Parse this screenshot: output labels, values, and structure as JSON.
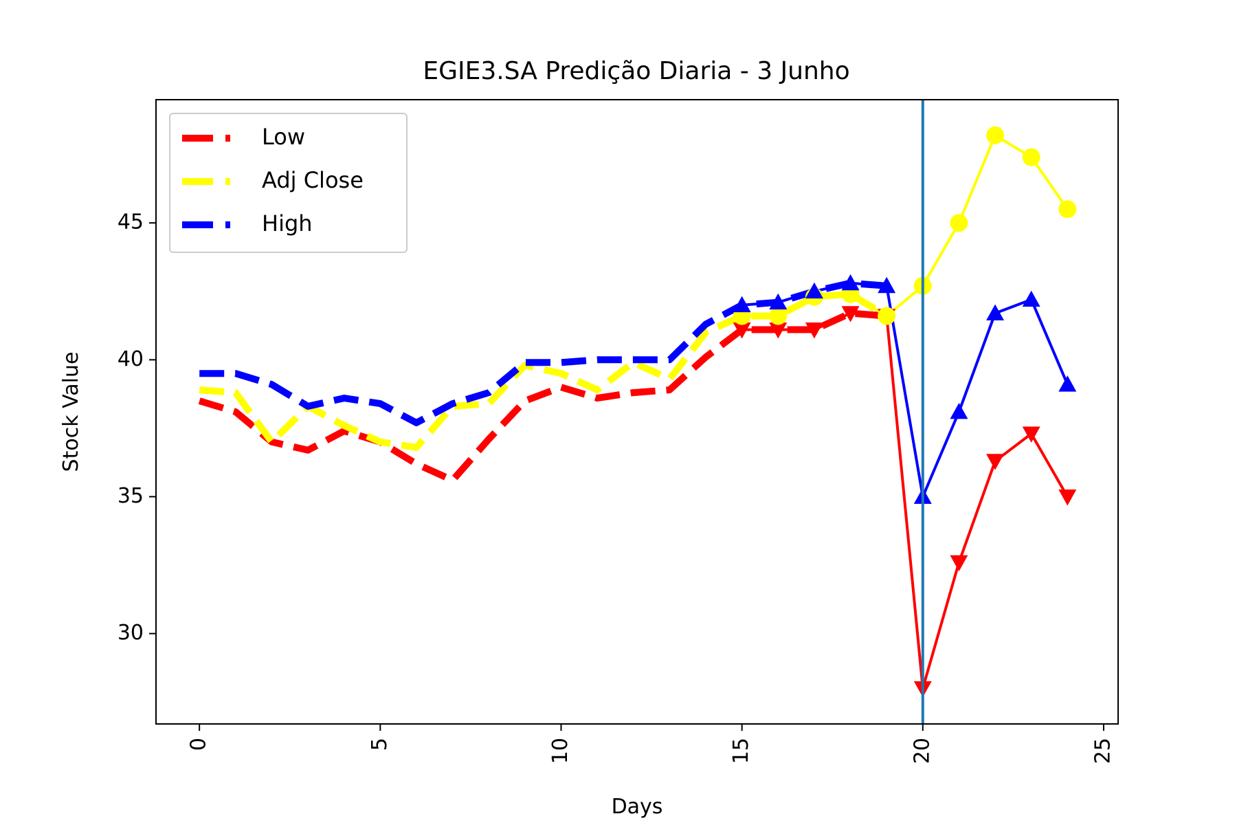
{
  "chart_data": {
    "type": "line",
    "title": "EGIE3.SA Predição Diaria - 3 Junho",
    "xlabel": "Days",
    "ylabel": "Stock Value",
    "xlim": [
      -1.2,
      25.4
    ],
    "ylim": [
      26.7,
      49.5
    ],
    "xticks": [
      0,
      5,
      10,
      15,
      20,
      25
    ],
    "xtick_labels": [
      "0",
      "5",
      "10",
      "15",
      "20",
      "25"
    ],
    "yticks": [
      30,
      35,
      40,
      45
    ],
    "ytick_labels": [
      "30",
      "35",
      "40",
      "45"
    ],
    "x_tick_rotation": "vertical",
    "grid": false,
    "legend": {
      "position": "top-left",
      "entries": [
        "Low",
        "Adj Close",
        "High"
      ]
    },
    "vertical_line": {
      "x": 20,
      "color": "#1f77b4"
    },
    "series": [
      {
        "name": "Low",
        "color": "#ff0000",
        "historical": {
          "style": "dashed",
          "x": [
            0,
            1,
            2,
            3,
            4,
            5,
            6,
            7,
            8,
            9,
            10,
            11,
            12,
            13,
            14,
            15,
            16,
            17,
            18,
            19
          ],
          "values": [
            38.5,
            38.1,
            37.0,
            36.7,
            37.4,
            37.0,
            36.2,
            35.6,
            37.1,
            38.5,
            39.0,
            38.6,
            38.8,
            38.9,
            40.1,
            41.1,
            41.1,
            41.1,
            41.7,
            41.6
          ]
        },
        "predicted": {
          "style": "solid",
          "marker": "triangle-down",
          "x": [
            15,
            16,
            17,
            18,
            19,
            20,
            21,
            22,
            23,
            24
          ],
          "values": [
            41.1,
            41.1,
            41.1,
            41.7,
            41.6,
            28.0,
            32.6,
            36.3,
            37.3,
            35.0
          ]
        }
      },
      {
        "name": "Adj Close",
        "color": "#ffff00",
        "historical": {
          "style": "dashed",
          "x": [
            0,
            1,
            2,
            3,
            4,
            5,
            6,
            7,
            8,
            9,
            10,
            11,
            12,
            13,
            14,
            15,
            16,
            17,
            18,
            19
          ],
          "values": [
            38.9,
            38.8,
            37.0,
            38.3,
            37.6,
            37.0,
            36.8,
            38.3,
            38.4,
            39.8,
            39.5,
            38.9,
            39.9,
            39.3,
            41.0,
            41.6,
            41.6,
            42.3,
            42.4,
            41.6
          ]
        },
        "predicted": {
          "style": "solid",
          "marker": "circle",
          "x": [
            15,
            16,
            17,
            18,
            19,
            20,
            21,
            22,
            23,
            24
          ],
          "values": [
            41.6,
            41.6,
            42.3,
            42.4,
            41.6,
            42.7,
            45.0,
            48.2,
            47.4,
            45.5
          ]
        }
      },
      {
        "name": "High",
        "color": "#0000ff",
        "historical": {
          "style": "dashed",
          "x": [
            0,
            1,
            2,
            3,
            4,
            5,
            6,
            7,
            8,
            9,
            10,
            11,
            12,
            13,
            14,
            15,
            16,
            17,
            18,
            19
          ],
          "values": [
            39.5,
            39.5,
            39.1,
            38.3,
            38.6,
            38.4,
            37.7,
            38.4,
            38.8,
            39.9,
            39.9,
            40.0,
            40.0,
            40.0,
            41.3,
            42.0,
            42.1,
            42.5,
            42.8,
            42.7
          ]
        },
        "predicted": {
          "style": "solid",
          "marker": "triangle-up",
          "x": [
            15,
            16,
            17,
            18,
            19,
            20,
            21,
            22,
            23,
            24
          ],
          "values": [
            42.0,
            42.1,
            42.5,
            42.8,
            42.7,
            35.0,
            38.1,
            41.7,
            42.2,
            39.1
          ]
        }
      }
    ]
  }
}
